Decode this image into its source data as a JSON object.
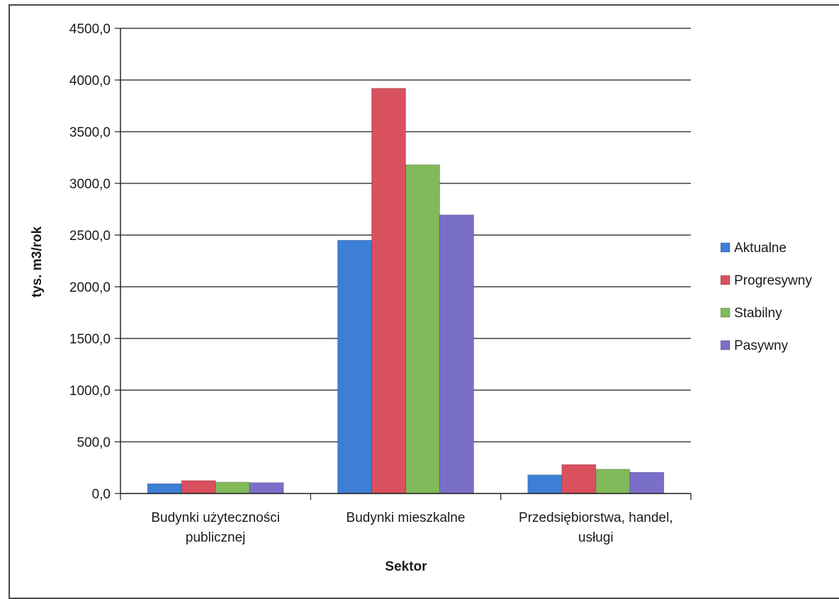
{
  "chart_data": {
    "type": "bar",
    "title": "",
    "xlabel": "Sektor",
    "ylabel": "tys. m3/rok",
    "ylim": [
      0,
      4500
    ],
    "ytick_step": 500,
    "ytick_labels": [
      "0,0",
      "500,0",
      "1000,0",
      "1500,0",
      "2000,0",
      "2500,0",
      "3000,0",
      "3500,0",
      "4000,0",
      "4500,0"
    ],
    "grid": true,
    "legend_position": "right",
    "categories": [
      [
        "Budynki użyteczności",
        "publicznej"
      ],
      [
        "Budynki mieszkalne"
      ],
      [
        "Przedsiębiorstwa, handel,",
        "usługi"
      ]
    ],
    "series": [
      {
        "name": "Aktualne",
        "color": "#3d7fd6",
        "values": [
          95,
          2450,
          180
        ]
      },
      {
        "name": "Progresywny",
        "color": "#d9505f",
        "values": [
          125,
          3920,
          280
        ]
      },
      {
        "name": "Stabilny",
        "color": "#82b95a",
        "values": [
          110,
          3180,
          235
        ]
      },
      {
        "name": "Pasywny",
        "color": "#7a6fc8",
        "values": [
          105,
          2695,
          205
        ]
      }
    ]
  }
}
